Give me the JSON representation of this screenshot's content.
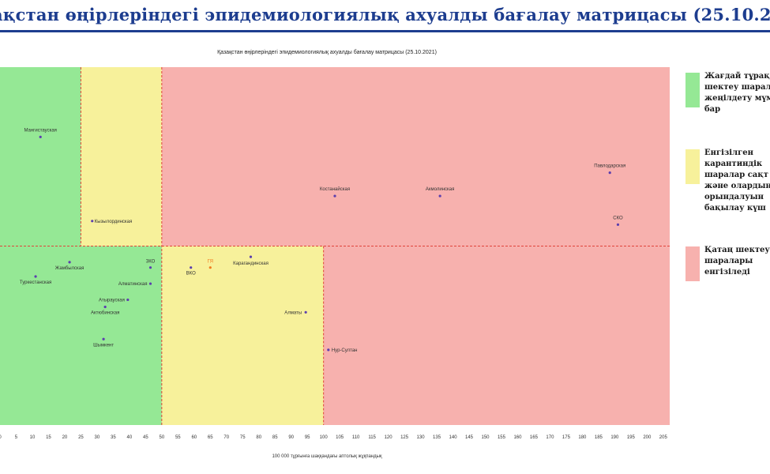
{
  "slide": {
    "title": "ақстан өңірлеріндегі эпидемиологиялық ахуалды бағалау матрицасы  (25.10.20"
  },
  "legend": {
    "items": [
      {
        "text": "Жағдай тұрақ\nшектеу шарал\nжеңілдету мүм\nбар",
        "color": "#95e895"
      },
      {
        "text": "Енгізілген\nкарантиндік\nшаралар сақт\nжәне олардың\nорындалуын\nбақылау күш",
        "color": "#f7f19b"
      },
      {
        "text": "Қатаң шектеу\nшаралары\nенгізіледі",
        "color": "#f7b1ae"
      }
    ]
  },
  "chart_data": {
    "type": "scatter",
    "title": "Қазақстан өңірлеріндегі эпидемиологиялық ахуалды бағалау матрицасы (25.10.2021)",
    "xlabel": "100 000 тұрғынға шаққандағы аптолық жұқпандық",
    "ylabel": "",
    "xlim": [
      0,
      207
    ],
    "ylim": [
      0,
      100
    ],
    "x_ticks": [
      0,
      5,
      10,
      15,
      20,
      25,
      30,
      35,
      40,
      45,
      50,
      55,
      60,
      65,
      70,
      75,
      80,
      85,
      90,
      95,
      100,
      105,
      110,
      115,
      120,
      125,
      130,
      135,
      140,
      145,
      150,
      155,
      160,
      165,
      170,
      175,
      180,
      185,
      190,
      195,
      200,
      205
    ],
    "x_thresholds": [
      25,
      50,
      100
    ],
    "y_threshold": 50,
    "zone_colors": {
      "green": "#95e895",
      "yellow": "#f7f19b",
      "red": "#f7b1ae",
      "threshold_line": "#e0433a"
    },
    "grid": false,
    "points": [
      {
        "label": "Мангистауская",
        "x": 12.5,
        "y": 80.5,
        "color": "#5c3fae"
      },
      {
        "label": "Кызылординская",
        "x": 28.5,
        "y": 57,
        "color": "#5c3fae"
      },
      {
        "label": "Костанайская",
        "x": 103.5,
        "y": 64,
        "color": "#5c3fae"
      },
      {
        "label": "Акмолинская",
        "x": 136,
        "y": 64,
        "color": "#5c3fae"
      },
      {
        "label": "Павлодарская",
        "x": 188.5,
        "y": 70.5,
        "color": "#5c3fae"
      },
      {
        "label": "СКО",
        "x": 191,
        "y": 56,
        "color": "#5c3fae"
      },
      {
        "label": "Жамбылская",
        "x": 21.5,
        "y": 45.5,
        "color": "#5c3fae"
      },
      {
        "label": "Туркестанская",
        "x": 11,
        "y": 41.5,
        "color": "#5c3fae"
      },
      {
        "label": "ЗКО",
        "x": 46.5,
        "y": 44,
        "color": "#5c3fae"
      },
      {
        "label": "Алматинская",
        "x": 46.5,
        "y": 39.5,
        "color": "#5c3fae"
      },
      {
        "label": "Атырауская",
        "x": 39.5,
        "y": 35,
        "color": "#5c3fae"
      },
      {
        "label": "Актюбинская",
        "x": 32.5,
        "y": 33,
        "color": "#5c3fae"
      },
      {
        "label": "Шымкент",
        "x": 32,
        "y": 24,
        "color": "#5c3fae"
      },
      {
        "label": "ВКО",
        "x": 59,
        "y": 44,
        "color": "#5c3fae"
      },
      {
        "label": "ГЯ",
        "x": 65,
        "y": 44,
        "color": "#f07b20"
      },
      {
        "label": "Карагандинская",
        "x": 77.5,
        "y": 47,
        "color": "#5c3fae"
      },
      {
        "label": "Алматы",
        "x": 94.5,
        "y": 31.5,
        "color": "#5c3fae"
      },
      {
        "label": "Нур-Султан",
        "x": 101.5,
        "y": 21,
        "color": "#5c3fae"
      }
    ]
  }
}
